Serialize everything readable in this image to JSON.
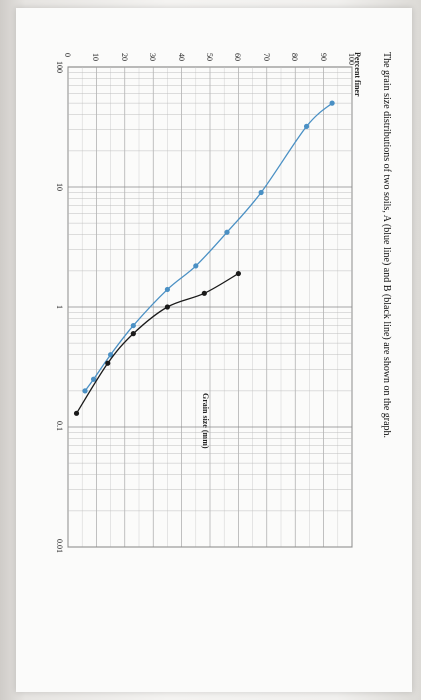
{
  "chart_data": {
    "type": "line",
    "title": "The grain size distributions of two soils, A (blue line) and B (black line) are shown on the graph.",
    "xlabel": "Grain size (mm)",
    "ylabel": "Percent finer",
    "x_scale": "log",
    "x_reversed": true,
    "xlim": [
      100,
      0.01
    ],
    "ylim": [
      0,
      100
    ],
    "x_ticks": [
      "100",
      "10",
      "1",
      "0.1",
      "0.01"
    ],
    "y_ticks": [
      "0",
      "10",
      "20",
      "30",
      "40",
      "50",
      "60",
      "70",
      "80",
      "90",
      "100"
    ],
    "grid": true,
    "series": [
      {
        "color": "#4a90c4",
        "points": [
          {
            "x": 50,
            "y": 93
          },
          {
            "x": 32,
            "y": 84
          },
          {
            "x": 9,
            "y": 68
          },
          {
            "x": 4.2,
            "y": 56
          },
          {
            "x": 2.2,
            "y": 45
          },
          {
            "x": 1.4,
            "y": 35
          },
          {
            "x": 0.7,
            "y": 23
          },
          {
            "x": 0.4,
            "y": 15
          },
          {
            "x": 0.25,
            "y": 9
          },
          {
            "x": 0.2,
            "y": 6
          }
        ]
      },
      {
        "color": "#1a1a1a",
        "points": [
          {
            "x": 1.9,
            "y": 60
          },
          {
            "x": 1.3,
            "y": 48
          },
          {
            "x": 1.0,
            "y": 35
          },
          {
            "x": 0.6,
            "y": 23
          },
          {
            "x": 0.34,
            "y": 14
          },
          {
            "x": 0.13,
            "y": 3
          }
        ]
      }
    ]
  }
}
